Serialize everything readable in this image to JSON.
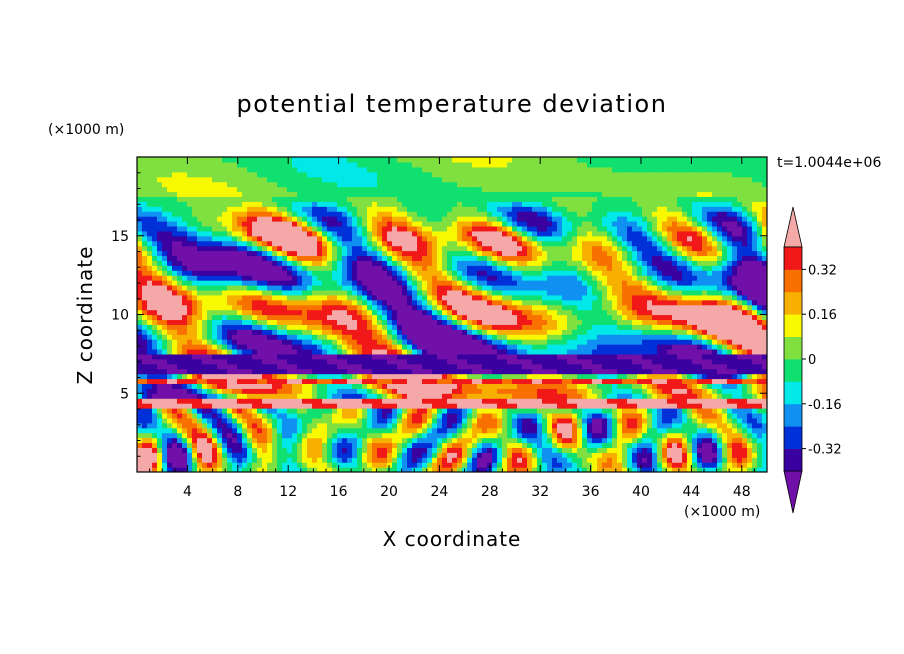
{
  "chart_data": {
    "type": "heatmap",
    "title": "potential temperature deviation",
    "xlabel": "X coordinate",
    "ylabel": "Z coordinate",
    "x_unit": "(×1000 m)",
    "y_unit": "(×1000 m)",
    "time_label": "t=1.0044e+06",
    "xlim": [
      0,
      50
    ],
    "ylim": [
      0,
      20
    ],
    "x_ticks": [
      "4",
      "8",
      "12",
      "16",
      "20",
      "24",
      "28",
      "32",
      "36",
      "40",
      "44",
      "48"
    ],
    "y_ticks": [
      "5",
      "10",
      "15"
    ],
    "colorbar": {
      "levels": [
        -0.4,
        -0.32,
        -0.24,
        -0.16,
        -0.08,
        0,
        0.08,
        0.16,
        0.24,
        0.32,
        0.4
      ],
      "tick_labels": [
        "-0.32",
        "-0.16",
        "0",
        "0.16",
        "0.32"
      ],
      "colors_low_to_high": [
        "#7010a8",
        "#3a00a0",
        "#0030d8",
        "#1090f0",
        "#00e8e8",
        "#10e070",
        "#80e040",
        "#f8f800",
        "#f8b000",
        "#f87000",
        "#f01818",
        "#f4a8a8"
      ],
      "extend": "both"
    },
    "bands": [
      {
        "z_range": [
          4.0,
          4.6
        ],
        "value": 0.42,
        "description": "thin warm layer"
      },
      {
        "z_range": [
          5.5,
          6.0
        ],
        "value": 0.36,
        "description": "warm layer"
      },
      {
        "z_range": [
          6.2,
          7.5
        ],
        "value": -0.38,
        "description": "cold layer"
      }
    ]
  }
}
